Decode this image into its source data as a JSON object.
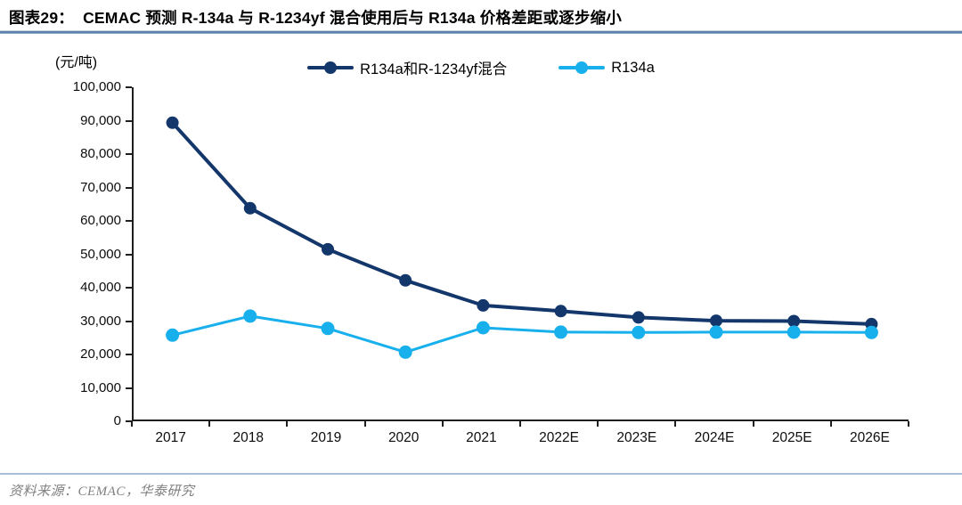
{
  "header": {
    "title": "图表29：  CEMAC 预测 R-134a 与 R-1234yf 混合使用后与 R134a 价格差距或逐步缩小"
  },
  "footer": {
    "source": "资料来源：CEMAC，华泰研究"
  },
  "colors": {
    "series_mix": "#13366b",
    "series_r134a": "#18b0ec",
    "axis": "#1f1f1f",
    "title_rule": "#5d83ad",
    "footer_rule": "#a7c0d8",
    "source_text": "#7f7f7f"
  },
  "chart_data": {
    "type": "line",
    "title": "CEMAC 预测 R-134a 与 R-1234yf 混合使用后与 R134a 价格差距或逐步缩小",
    "unit_label": "(元/吨)",
    "xlabel": "",
    "ylabel": "元/吨",
    "categories": [
      "2017",
      "2018",
      "2019",
      "2020",
      "2021",
      "2022E",
      "2023E",
      "2024E",
      "2025E",
      "2026E"
    ],
    "series": [
      {
        "name": "R134a和R-1234yf混合",
        "color": "#13366b",
        "values": [
          89400,
          63800,
          51500,
          42200,
          34700,
          33000,
          31100,
          30100,
          30000,
          29100
        ]
      },
      {
        "name": "R134a",
        "color": "#18b0ec",
        "values": [
          25800,
          31500,
          27800,
          20700,
          28000,
          26700,
          26600,
          26700,
          26700,
          26600
        ]
      }
    ],
    "ylim": [
      0,
      100000
    ],
    "ytick_step": 10000,
    "grid": false,
    "legend_position": "top"
  }
}
